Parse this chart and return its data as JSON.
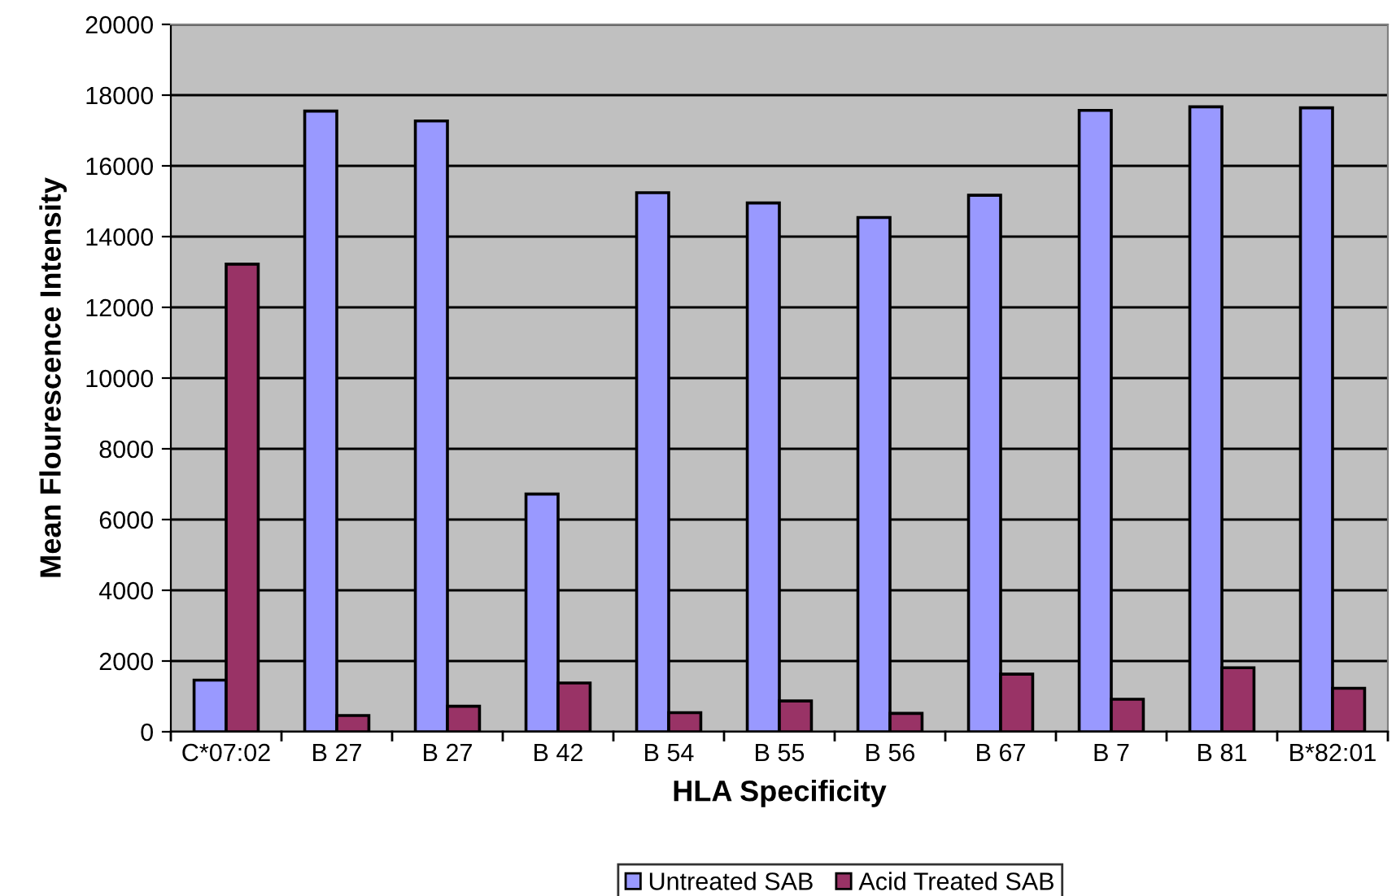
{
  "chart_data": {
    "type": "bar",
    "xlabel": "HLA Specificity",
    "ylabel": "Mean Flourescence Intensity",
    "categories": [
      "C*07:02",
      "B 27",
      "B 27",
      "B 42",
      "B 54",
      "B 55",
      "B 56",
      "B 67",
      "B 7",
      "B 81",
      "B*82:01"
    ],
    "series": [
      {
        "name": "Untreated SAB",
        "color": "#9999ff",
        "values": [
          1460,
          17550,
          17270,
          6720,
          15240,
          14950,
          14540,
          15170,
          17570,
          17670,
          17640
        ]
      },
      {
        "name": "Acid Treated SAB",
        "color": "#993366",
        "values": [
          13220,
          460,
          720,
          1380,
          540,
          870,
          520,
          1630,
          920,
          1810,
          1230
        ]
      }
    ],
    "ylim": [
      0,
      20000
    ],
    "yticks": [
      0,
      2000,
      4000,
      6000,
      8000,
      10000,
      12000,
      14000,
      16000,
      18000,
      20000
    ],
    "grid": "y",
    "legend": "bottom"
  }
}
